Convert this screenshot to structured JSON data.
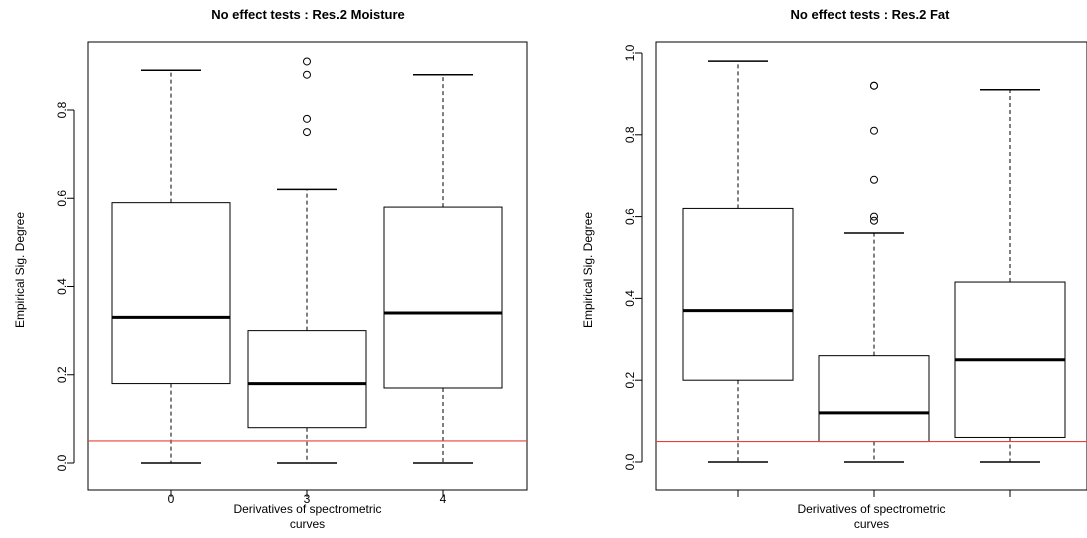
{
  "chart_data": [
    {
      "type": "box",
      "title": "No effect tests : Res.2 Moisture",
      "xlabel": [
        "Derivatives of spectrometric",
        "curves"
      ],
      "ylabel": "Empirical Sig. Degree",
      "categories": [
        "0",
        "3",
        "4"
      ],
      "show_x_tick_labels": true,
      "ylim": [
        0,
        0.91
      ],
      "yticks": [
        "0.0",
        "0.2",
        "0.4",
        "0.6",
        "0.8"
      ],
      "reference_line": {
        "y": 0.05,
        "color": "#e8413a"
      },
      "boxes": [
        {
          "category": "0",
          "min": 0.0,
          "q1": 0.18,
          "median": 0.33,
          "q3": 0.59,
          "max": 0.89,
          "outliers": []
        },
        {
          "category": "3",
          "min": 0.0,
          "q1": 0.08,
          "median": 0.18,
          "q3": 0.3,
          "max": 0.62,
          "outliers": [
            0.91,
            0.88,
            0.78,
            0.75
          ]
        },
        {
          "category": "4",
          "min": 0.0,
          "q1": 0.17,
          "median": 0.34,
          "q3": 0.58,
          "max": 0.88,
          "outliers": []
        }
      ]
    },
    {
      "type": "box",
      "title": "No effect tests : Res.2 Fat",
      "xlabel": [
        "Derivatives of spectrometric",
        "curves"
      ],
      "ylabel": "Empirical Sig. Degree",
      "categories": [
        "",
        "",
        ""
      ],
      "show_x_tick_labels": false,
      "ylim": [
        0,
        1.0
      ],
      "yticks": [
        "0.0",
        "0.2",
        "0.4",
        "0.6",
        "0.8",
        "1.0"
      ],
      "reference_line": {
        "y": 0.05,
        "color": "#e8413a"
      },
      "boxes": [
        {
          "category": "",
          "min": 0.0,
          "q1": 0.2,
          "median": 0.37,
          "q3": 0.62,
          "max": 0.98,
          "outliers": []
        },
        {
          "category": "",
          "min": 0.0,
          "q1": 0.05,
          "median": 0.12,
          "q3": 0.26,
          "max": 0.56,
          "outliers": [
            0.92,
            0.92,
            0.81,
            0.69,
            0.6,
            0.59
          ]
        },
        {
          "category": "",
          "min": 0.0,
          "q1": 0.06,
          "median": 0.25,
          "q3": 0.44,
          "max": 0.91,
          "outliers": []
        }
      ]
    }
  ]
}
